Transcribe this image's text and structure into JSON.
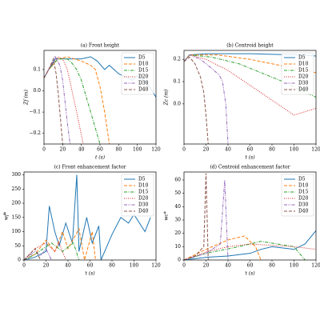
{
  "chart_data": [
    {
      "type": "line",
      "title": "(a) Front height",
      "xlabel": "t (s)",
      "ylabel": "Zf (m)",
      "xlim": [
        0,
        120
      ],
      "xticks": [
        0,
        20,
        40,
        60,
        80,
        100,
        120
      ],
      "ylim": [
        -0.25,
        0.19
      ],
      "yticks": [
        {
          "value": -0.2,
          "label": "−0.2"
        },
        {
          "value": -0.1,
          "label": "−0.1"
        },
        {
          "value": 0,
          "label": "0.0"
        },
        0.1
      ],
      "legend": "upper right",
      "series": [
        {
          "name": "D5",
          "color": "#1f77b4",
          "linestyle": "solid",
          "x": [
            0,
            5,
            12,
            25,
            40,
            50,
            57,
            65,
            70,
            80,
            90,
            95,
            100,
            110,
            120
          ],
          "values": [
            0.06,
            0.1,
            0.15,
            0.15,
            0.15,
            0.16,
            0.14,
            0.1,
            0.12,
            0.08,
            0.06,
            0.05,
            0.07,
            0.04,
            -0.03
          ]
        },
        {
          "name": "D10",
          "color": "#ff7f0e",
          "linestyle": "dashed",
          "x": [
            0,
            5,
            15,
            25,
            40,
            50,
            55,
            60,
            65,
            70
          ],
          "values": [
            0.06,
            0.1,
            0.15,
            0.16,
            0.14,
            0.12,
            0.1,
            0.02,
            -0.1,
            -0.25
          ]
        },
        {
          "name": "D15",
          "color": "#2ca02c",
          "linestyle": "dashdot",
          "x": [
            0,
            5,
            15,
            25,
            30,
            35,
            40,
            50,
            60
          ],
          "values": [
            0.06,
            0.1,
            0.15,
            0.15,
            0.13,
            0.1,
            0.05,
            -0.1,
            -0.25
          ]
        },
        {
          "name": "D20",
          "color": "#d62728",
          "linestyle": "dotted",
          "x": [
            0,
            5,
            15,
            20,
            25,
            30,
            35,
            42
          ],
          "values": [
            0.06,
            0.1,
            0.16,
            0.15,
            0.1,
            0.0,
            -0.1,
            -0.25
          ]
        },
        {
          "name": "D30",
          "color": "#9467bd",
          "linestyle": "dashdotdot",
          "x": [
            0,
            5,
            12,
            17,
            20,
            25,
            28
          ],
          "values": [
            0.06,
            0.1,
            0.16,
            0.12,
            0.05,
            -0.15,
            -0.25
          ]
        },
        {
          "name": "D40",
          "color": "#8c564b",
          "linestyle": "dashed",
          "x": [
            0,
            5,
            10,
            13,
            15,
            20
          ],
          "values": [
            0.06,
            0.1,
            0.15,
            0.08,
            0.0,
            -0.25
          ]
        }
      ]
    },
    {
      "type": "line",
      "title": "(b) Centroid height",
      "xlabel": "t (s)",
      "ylabel": "Zc (m)",
      "xlim": [
        0,
        120
      ],
      "xticks": [
        0,
        20,
        40,
        60,
        80,
        100,
        120
      ],
      "ylim": [
        -0.18,
        0.24
      ],
      "yticks": [
        {
          "value": 0,
          "label": "0.0"
        },
        0.1,
        0.2
      ],
      "legend": "upper right",
      "series": [
        {
          "name": "D5",
          "color": "#1f77b4",
          "linestyle": "solid",
          "x": [
            0,
            5,
            20,
            60,
            100,
            120
          ],
          "values": [
            0.19,
            0.22,
            0.225,
            0.225,
            0.22,
            0.215
          ]
        },
        {
          "name": "D10",
          "color": "#ff7f0e",
          "linestyle": "dashed",
          "x": [
            0,
            5,
            30,
            60,
            90,
            120
          ],
          "values": [
            0.19,
            0.22,
            0.22,
            0.2,
            0.17,
            0.14
          ]
        },
        {
          "name": "D15",
          "color": "#2ca02c",
          "linestyle": "dashdot",
          "x": [
            0,
            5,
            25,
            50,
            70,
            90,
            120
          ],
          "values": [
            0.19,
            0.22,
            0.21,
            0.18,
            0.14,
            0.1,
            0.03
          ]
        },
        {
          "name": "D20",
          "color": "#d62728",
          "linestyle": "dotted",
          "x": [
            0,
            5,
            20,
            40,
            55,
            70,
            85,
            100,
            120
          ],
          "values": [
            0.19,
            0.22,
            0.2,
            0.15,
            0.1,
            0.05,
            0.0,
            -0.05,
            -0.02
          ]
        },
        {
          "name": "D30",
          "color": "#9467bd",
          "linestyle": "dashdotdot",
          "x": [
            0,
            5,
            15,
            25,
            32,
            35,
            38,
            40
          ],
          "values": [
            0.19,
            0.22,
            0.2,
            0.16,
            0.13,
            0.1,
            0.0,
            -0.18
          ]
        },
        {
          "name": "D40",
          "color": "#8c564b",
          "linestyle": "dashed",
          "x": [
            0,
            5,
            10,
            15,
            18,
            20,
            22
          ],
          "values": [
            0.19,
            0.21,
            0.18,
            0.12,
            0.05,
            -0.05,
            -0.18
          ]
        }
      ]
    },
    {
      "type": "line",
      "title": "(c) Front enhancement factor",
      "xlabel": "t (s)",
      "ylabel": "wf*",
      "xlim": [
        0,
        120
      ],
      "xticks": [
        0,
        20,
        40,
        60,
        80,
        100,
        120
      ],
      "ylim": [
        0,
        310
      ],
      "yticks": [
        0,
        50,
        100,
        150,
        200,
        250,
        300
      ],
      "legend": "upper right",
      "series": [
        {
          "name": "D5",
          "color": "#1f77b4",
          "linestyle": "solid",
          "x": [
            0,
            10,
            20,
            23,
            28,
            32,
            38,
            44,
            48,
            50,
            57,
            62,
            68,
            70,
            80,
            88,
            95,
            100,
            110,
            115
          ],
          "values": [
            0,
            10,
            30,
            190,
            100,
            50,
            130,
            60,
            300,
            30,
            150,
            60,
            120,
            0,
            90,
            150,
            130,
            160,
            100,
            150
          ]
        },
        {
          "name": "D10",
          "color": "#ff7f0e",
          "linestyle": "dashed",
          "x": [
            0,
            10,
            20,
            28,
            35,
            40,
            50,
            55,
            62,
            65
          ],
          "values": [
            0,
            20,
            70,
            30,
            100,
            40,
            110,
            0,
            100,
            0
          ]
        },
        {
          "name": "D15",
          "color": "#2ca02c",
          "linestyle": "dashdot",
          "x": [
            0,
            10,
            25,
            35,
            45,
            50
          ],
          "values": [
            0,
            20,
            60,
            30,
            60,
            0
          ]
        },
        {
          "name": "D20",
          "color": "#d62728",
          "linestyle": "dotted",
          "x": [
            0,
            10,
            20,
            28,
            32,
            38
          ],
          "values": [
            0,
            40,
            60,
            30,
            60,
            0
          ]
        },
        {
          "name": "D30",
          "color": "#9467bd",
          "linestyle": "dashdotdot",
          "x": [
            0,
            10,
            15,
            20,
            25
          ],
          "values": [
            0,
            30,
            15,
            40,
            0
          ]
        },
        {
          "name": "D40",
          "color": "#8c564b",
          "linestyle": "dashed",
          "x": [
            0,
            5,
            10,
            15
          ],
          "values": [
            0,
            20,
            40,
            0
          ]
        }
      ]
    },
    {
      "type": "line",
      "title": "(d) Centroid enhancement factor",
      "xlabel": "t (s)",
      "ylabel": "wc*",
      "xlim": [
        0,
        120
      ],
      "xticks": [
        0,
        20,
        40,
        60,
        80,
        100,
        120
      ],
      "ylim": [
        0,
        66
      ],
      "yticks": [
        0,
        10,
        20,
        30,
        40,
        50,
        60
      ],
      "legend": "upper right",
      "series": [
        {
          "name": "D5",
          "color": "#1f77b4",
          "linestyle": "solid",
          "x": [
            0,
            20,
            40,
            60,
            70,
            80,
            90,
            100,
            110,
            120
          ],
          "values": [
            0,
            2,
            3,
            5,
            8,
            10,
            9,
            8,
            12,
            22
          ]
        },
        {
          "name": "D10",
          "color": "#ff7f0e",
          "linestyle": "dashed",
          "x": [
            0,
            20,
            40,
            55,
            65,
            70
          ],
          "values": [
            0,
            8,
            15,
            18,
            10,
            0
          ]
        },
        {
          "name": "D15",
          "color": "#2ca02c",
          "linestyle": "dashdot",
          "x": [
            0,
            20,
            50,
            70,
            100,
            110
          ],
          "values": [
            0,
            5,
            10,
            14,
            10,
            0
          ]
        },
        {
          "name": "D20",
          "color": "#d62728",
          "linestyle": "dotted",
          "x": [
            0,
            20,
            40,
            60,
            80,
            100,
            120
          ],
          "values": [
            0,
            6,
            10,
            12,
            11,
            10,
            8
          ]
        },
        {
          "name": "D30",
          "color": "#9467bd",
          "linestyle": "dashdotdot",
          "x": [
            0,
            20,
            33,
            37,
            40
          ],
          "values": [
            0,
            5,
            12,
            60,
            0
          ]
        },
        {
          "name": "D40",
          "color": "#8c564b",
          "linestyle": "dashed",
          "x": [
            0,
            10,
            18,
            20,
            22
          ],
          "values": [
            0,
            3,
            10,
            65,
            0
          ]
        }
      ]
    }
  ]
}
